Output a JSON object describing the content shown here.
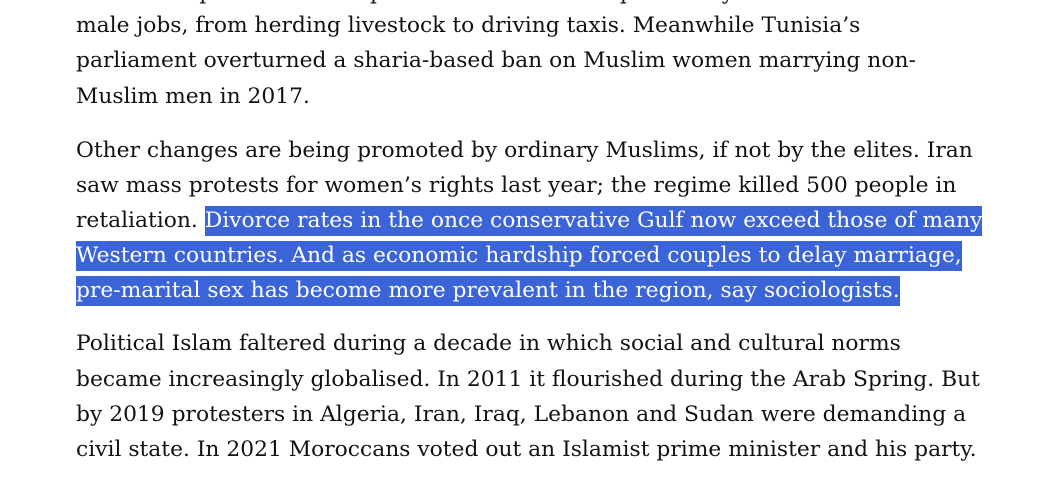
{
  "article": {
    "clipped_line": "of the new prime minister promoted women into previously",
    "paragraphs": [
      {
        "lines": [
          "male jobs, from herding livestock to driving taxis. Meanwhile Tunisia’s",
          "parliament overturned a sharia-based ban on Muslim women marrying non-",
          "Muslim men in 2017."
        ]
      },
      {
        "lines": [
          "Other changes are being promoted by ordinary Muslims, if not by the elites. Iran",
          "saw mass protests for women’s rights last year; the regime killed 500 people in"
        ],
        "mixed_line_plain": "retaliation. ",
        "selected_lines": [
          "Divorce rates in the once conservative Gulf now exceed those of many",
          "Western countries. And as economic hardship forced couples to delay marriage,",
          "pre-marital sex has become more prevalent in the region, say sociologists."
        ]
      },
      {
        "lines": [
          "Political Islam faltered during a decade in which social and cultural norms",
          "became increasingly globalised. In 2011 it flourished during the Arab Spring. But",
          "by 2019 protesters in Algeria, Iran, Iraq, Lebanon and Sudan were demanding a",
          "civil state. In 2021 Moroccans voted out an Islamist prime minister and his party."
        ]
      }
    ]
  },
  "colors": {
    "text": "#121212",
    "selection_background": "#3b64d8",
    "selection_text": "#ffffff",
    "page_background": "#ffffff"
  }
}
